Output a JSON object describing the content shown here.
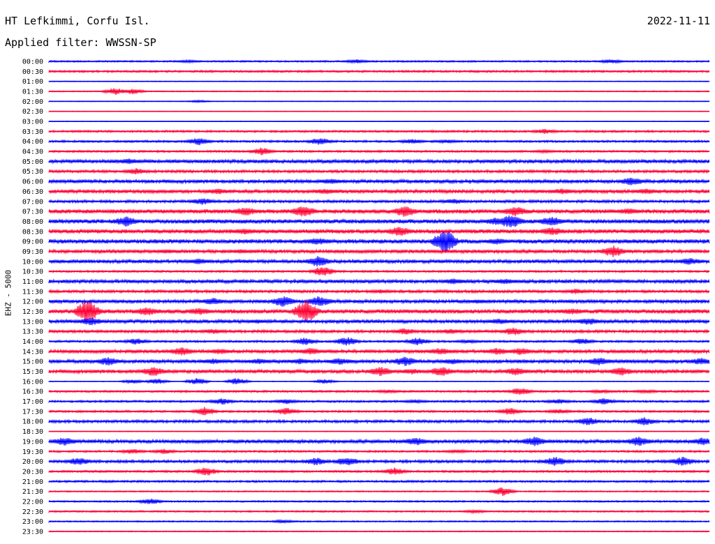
{
  "header": {
    "station": "HT Lefkimmi, Corfu Isl.",
    "date": "2022-11-11",
    "filter": "Applied filter: WWSSN-SP",
    "channel": "EHZ - 5000"
  },
  "colors": {
    "odd": "#0000ff",
    "even": "#ff0033"
  },
  "chart_data": {
    "type": "line",
    "title": "HT Lefkimmi, Corfu Isl.",
    "subtitle": "Applied filter: WWSSN-SP",
    "ylabel": "EHZ - 5000",
    "date": "2022-11-11",
    "traces": [
      {
        "label": "00:00",
        "amp": 1.2,
        "events": [
          [
            270,
            1.5
          ],
          [
            510,
            2.5
          ],
          [
            875,
            2.5
          ]
        ]
      },
      {
        "label": "00:30",
        "amp": 1.5,
        "events": []
      },
      {
        "label": "01:00",
        "amp": 0.6,
        "events": []
      },
      {
        "label": "01:30",
        "amp": 0.8,
        "events": [
          [
            165,
            5
          ],
          [
            190,
            4
          ]
        ]
      },
      {
        "label": "02:00",
        "amp": 0.6,
        "events": [
          [
            285,
            1.5
          ]
        ]
      },
      {
        "label": "02:30",
        "amp": 0.5,
        "events": []
      },
      {
        "label": "03:00",
        "amp": 0.5,
        "events": []
      },
      {
        "label": "03:30",
        "amp": 1.5,
        "events": [
          [
            780,
            3
          ]
        ]
      },
      {
        "label": "04:00",
        "amp": 1.5,
        "events": [
          [
            285,
            5
          ],
          [
            458,
            5
          ],
          [
            590,
            3
          ],
          [
            640,
            2
          ]
        ]
      },
      {
        "label": "04:30",
        "amp": 1.5,
        "events": [
          [
            375,
            5
          ],
          [
            780,
            1.5
          ]
        ]
      },
      {
        "label": "05:00",
        "amp": 2.5,
        "events": [
          [
            185,
            3
          ]
        ]
      },
      {
        "label": "05:30",
        "amp": 2.0,
        "events": [
          [
            195,
            4
          ]
        ]
      },
      {
        "label": "06:00",
        "amp": 2.5,
        "events": [
          [
            475,
            3
          ],
          [
            905,
            5
          ]
        ]
      },
      {
        "label": "06:30",
        "amp": 2.5,
        "events": [
          [
            312,
            3
          ],
          [
            465,
            3
          ],
          [
            805,
            3
          ],
          [
            925,
            3
          ]
        ]
      },
      {
        "label": "07:00",
        "amp": 2.0,
        "events": [
          [
            290,
            4
          ],
          [
            650,
            3
          ]
        ]
      },
      {
        "label": "07:30",
        "amp": 3.0,
        "events": [
          [
            352,
            5
          ],
          [
            435,
            7
          ],
          [
            580,
            7
          ],
          [
            738,
            6
          ],
          [
            900,
            3
          ]
        ]
      },
      {
        "label": "08:00",
        "amp": 3.0,
        "events": [
          [
            180,
            6
          ],
          [
            710,
            4
          ],
          [
            731,
            10
          ],
          [
            790,
            6
          ]
        ]
      },
      {
        "label": "08:30",
        "amp": 3.0,
        "events": [
          [
            350,
            3
          ],
          [
            572,
            6
          ],
          [
            790,
            5
          ]
        ]
      },
      {
        "label": "09:00",
        "amp": 3.0,
        "events": [
          [
            455,
            4
          ],
          [
            637,
            18
          ],
          [
            712,
            3
          ]
        ]
      },
      {
        "label": "09:30",
        "amp": 2.5,
        "events": [
          [
            240,
            2
          ],
          [
            345,
            2
          ],
          [
            878,
            8
          ]
        ]
      },
      {
        "label": "10:00",
        "amp": 2.5,
        "events": [
          [
            285,
            3
          ],
          [
            455,
            7
          ],
          [
            988,
            4
          ]
        ]
      },
      {
        "label": "10:30",
        "amp": 1.5,
        "events": [
          [
            462,
            7
          ]
        ]
      },
      {
        "label": "11:00",
        "amp": 2.5,
        "events": [
          [
            650,
            3
          ],
          [
            725,
            3
          ]
        ]
      },
      {
        "label": "11:30",
        "amp": 2.0,
        "events": [
          [
            545,
            2
          ],
          [
            825,
            3
          ]
        ]
      },
      {
        "label": "12:00",
        "amp": 2.5,
        "events": [
          [
            305,
            4
          ],
          [
            405,
            7
          ],
          [
            458,
            7
          ],
          [
            685,
            2
          ]
        ]
      },
      {
        "label": "12:30",
        "amp": 3.0,
        "events": [
          [
            125,
            17
          ],
          [
            210,
            5
          ],
          [
            285,
            4
          ],
          [
            438,
            17
          ],
          [
            820,
            3
          ]
        ]
      },
      {
        "label": "13:00",
        "amp": 2.5,
        "events": [
          [
            130,
            5
          ],
          [
            370,
            2
          ],
          [
            715,
            3
          ],
          [
            843,
            4
          ]
        ]
      },
      {
        "label": "13:30",
        "amp": 2.0,
        "events": [
          [
            305,
            3
          ],
          [
            580,
            4
          ],
          [
            645,
            3
          ],
          [
            735,
            5
          ]
        ]
      },
      {
        "label": "14:00",
        "amp": 1.5,
        "events": [
          [
            195,
            4
          ],
          [
            437,
            5
          ],
          [
            497,
            6
          ],
          [
            598,
            5
          ],
          [
            670,
            2
          ],
          [
            834,
            4
          ]
        ]
      },
      {
        "label": "14:30",
        "amp": 2.5,
        "events": [
          [
            260,
            5
          ],
          [
            315,
            3
          ],
          [
            445,
            4
          ],
          [
            630,
            4
          ],
          [
            712,
            4
          ],
          [
            745,
            4
          ]
        ]
      },
      {
        "label": "15:00",
        "amp": 2.5,
        "events": [
          [
            155,
            5
          ],
          [
            305,
            3
          ],
          [
            370,
            3
          ],
          [
            430,
            3
          ],
          [
            487,
            4
          ],
          [
            580,
            6
          ],
          [
            648,
            3
          ],
          [
            858,
            5
          ],
          [
            1004,
            4
          ]
        ]
      },
      {
        "label": "15:30",
        "amp": 2.5,
        "events": [
          [
            220,
            6
          ],
          [
            545,
            6
          ],
          [
            590,
            3
          ],
          [
            632,
            6
          ],
          [
            740,
            5
          ],
          [
            890,
            5
          ]
        ]
      },
      {
        "label": "16:00",
        "amp": 0.6,
        "events": [
          [
            190,
            3
          ],
          [
            225,
            4
          ],
          [
            282,
            5
          ],
          [
            340,
            5
          ],
          [
            465,
            3
          ]
        ]
      },
      {
        "label": "16:30",
        "amp": 1.5,
        "events": [
          [
            555,
            2
          ],
          [
            745,
            5
          ],
          [
            860,
            2
          ],
          [
            925,
            2
          ]
        ]
      },
      {
        "label": "17:00",
        "amp": 1.5,
        "events": [
          [
            318,
            4
          ],
          [
            410,
            3
          ],
          [
            595,
            2
          ],
          [
            800,
            3
          ],
          [
            865,
            4
          ]
        ]
      },
      {
        "label": "17:30",
        "amp": 1.5,
        "events": [
          [
            293,
            6
          ],
          [
            410,
            5
          ],
          [
            730,
            5
          ],
          [
            800,
            3
          ]
        ]
      },
      {
        "label": "18:00",
        "amp": 2.0,
        "events": [
          [
            843,
            5
          ],
          [
            923,
            5
          ]
        ]
      },
      {
        "label": "18:30",
        "amp": 0.6,
        "events": []
      },
      {
        "label": "19:00",
        "amp": 2.5,
        "events": [
          [
            92,
            5
          ],
          [
            595,
            5
          ],
          [
            765,
            6
          ],
          [
            915,
            6
          ],
          [
            1008,
            5
          ]
        ]
      },
      {
        "label": "19:30",
        "amp": 1.5,
        "events": [
          [
            190,
            3
          ],
          [
            235,
            3
          ],
          [
            655,
            2
          ]
        ]
      },
      {
        "label": "20:00",
        "amp": 2.0,
        "events": [
          [
            112,
            5
          ],
          [
            452,
            5
          ],
          [
            497,
            6
          ],
          [
            795,
            6
          ],
          [
            978,
            6
          ]
        ]
      },
      {
        "label": "20:30",
        "amp": 1.5,
        "events": [
          [
            295,
            6
          ],
          [
            565,
            5
          ]
        ]
      },
      {
        "label": "21:00",
        "amp": 1.5,
        "events": []
      },
      {
        "label": "21:30",
        "amp": 1.0,
        "events": [
          [
            720,
            6
          ]
        ]
      },
      {
        "label": "22:00",
        "amp": 1.2,
        "events": [
          [
            215,
            4
          ]
        ]
      },
      {
        "label": "22:30",
        "amp": 1.2,
        "events": [
          [
            680,
            2
          ]
        ]
      },
      {
        "label": "23:00",
        "amp": 1.0,
        "events": [
          [
            405,
            2
          ]
        ]
      },
      {
        "label": "23:30",
        "amp": 0.8,
        "events": []
      }
    ]
  }
}
